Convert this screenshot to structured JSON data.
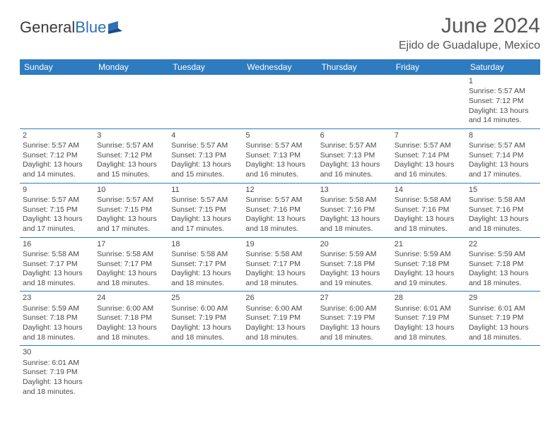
{
  "logo": {
    "text1": "General",
    "text2": "Blue"
  },
  "header": {
    "month_title": "June 2024",
    "location": "Ejido de Guadalupe, Mexico"
  },
  "weekdays": [
    "Sunday",
    "Monday",
    "Tuesday",
    "Wednesday",
    "Thursday",
    "Friday",
    "Saturday"
  ],
  "colors": {
    "header_bg": "#2e7bc0",
    "header_fg": "#ffffff",
    "rule": "#2e7bc0",
    "text": "#4a4a4a"
  },
  "weeks": [
    [
      null,
      null,
      null,
      null,
      null,
      null,
      {
        "n": "1",
        "sunrise": "5:57 AM",
        "sunset": "7:12 PM",
        "daylight": "13 hours and 14 minutes."
      }
    ],
    [
      {
        "n": "2",
        "sunrise": "5:57 AM",
        "sunset": "7:12 PM",
        "daylight": "13 hours and 14 minutes."
      },
      {
        "n": "3",
        "sunrise": "5:57 AM",
        "sunset": "7:12 PM",
        "daylight": "13 hours and 15 minutes."
      },
      {
        "n": "4",
        "sunrise": "5:57 AM",
        "sunset": "7:13 PM",
        "daylight": "13 hours and 15 minutes."
      },
      {
        "n": "5",
        "sunrise": "5:57 AM",
        "sunset": "7:13 PM",
        "daylight": "13 hours and 16 minutes."
      },
      {
        "n": "6",
        "sunrise": "5:57 AM",
        "sunset": "7:13 PM",
        "daylight": "13 hours and 16 minutes."
      },
      {
        "n": "7",
        "sunrise": "5:57 AM",
        "sunset": "7:14 PM",
        "daylight": "13 hours and 16 minutes."
      },
      {
        "n": "8",
        "sunrise": "5:57 AM",
        "sunset": "7:14 PM",
        "daylight": "13 hours and 17 minutes."
      }
    ],
    [
      {
        "n": "9",
        "sunrise": "5:57 AM",
        "sunset": "7:15 PM",
        "daylight": "13 hours and 17 minutes."
      },
      {
        "n": "10",
        "sunrise": "5:57 AM",
        "sunset": "7:15 PM",
        "daylight": "13 hours and 17 minutes."
      },
      {
        "n": "11",
        "sunrise": "5:57 AM",
        "sunset": "7:15 PM",
        "daylight": "13 hours and 17 minutes."
      },
      {
        "n": "12",
        "sunrise": "5:57 AM",
        "sunset": "7:16 PM",
        "daylight": "13 hours and 18 minutes."
      },
      {
        "n": "13",
        "sunrise": "5:58 AM",
        "sunset": "7:16 PM",
        "daylight": "13 hours and 18 minutes."
      },
      {
        "n": "14",
        "sunrise": "5:58 AM",
        "sunset": "7:16 PM",
        "daylight": "13 hours and 18 minutes."
      },
      {
        "n": "15",
        "sunrise": "5:58 AM",
        "sunset": "7:16 PM",
        "daylight": "13 hours and 18 minutes."
      }
    ],
    [
      {
        "n": "16",
        "sunrise": "5:58 AM",
        "sunset": "7:17 PM",
        "daylight": "13 hours and 18 minutes."
      },
      {
        "n": "17",
        "sunrise": "5:58 AM",
        "sunset": "7:17 PM",
        "daylight": "13 hours and 18 minutes."
      },
      {
        "n": "18",
        "sunrise": "5:58 AM",
        "sunset": "7:17 PM",
        "daylight": "13 hours and 18 minutes."
      },
      {
        "n": "19",
        "sunrise": "5:58 AM",
        "sunset": "7:17 PM",
        "daylight": "13 hours and 18 minutes."
      },
      {
        "n": "20",
        "sunrise": "5:59 AM",
        "sunset": "7:18 PM",
        "daylight": "13 hours and 19 minutes."
      },
      {
        "n": "21",
        "sunrise": "5:59 AM",
        "sunset": "7:18 PM",
        "daylight": "13 hours and 19 minutes."
      },
      {
        "n": "22",
        "sunrise": "5:59 AM",
        "sunset": "7:18 PM",
        "daylight": "13 hours and 18 minutes."
      }
    ],
    [
      {
        "n": "23",
        "sunrise": "5:59 AM",
        "sunset": "7:18 PM",
        "daylight": "13 hours and 18 minutes."
      },
      {
        "n": "24",
        "sunrise": "6:00 AM",
        "sunset": "7:18 PM",
        "daylight": "13 hours and 18 minutes."
      },
      {
        "n": "25",
        "sunrise": "6:00 AM",
        "sunset": "7:19 PM",
        "daylight": "13 hours and 18 minutes."
      },
      {
        "n": "26",
        "sunrise": "6:00 AM",
        "sunset": "7:19 PM",
        "daylight": "13 hours and 18 minutes."
      },
      {
        "n": "27",
        "sunrise": "6:00 AM",
        "sunset": "7:19 PM",
        "daylight": "13 hours and 18 minutes."
      },
      {
        "n": "28",
        "sunrise": "6:01 AM",
        "sunset": "7:19 PM",
        "daylight": "13 hours and 18 minutes."
      },
      {
        "n": "29",
        "sunrise": "6:01 AM",
        "sunset": "7:19 PM",
        "daylight": "13 hours and 18 minutes."
      }
    ],
    [
      {
        "n": "30",
        "sunrise": "6:01 AM",
        "sunset": "7:19 PM",
        "daylight": "13 hours and 18 minutes."
      },
      null,
      null,
      null,
      null,
      null,
      null
    ]
  ],
  "labels": {
    "sunrise": "Sunrise: ",
    "sunset": "Sunset: ",
    "daylight": "Daylight: "
  }
}
